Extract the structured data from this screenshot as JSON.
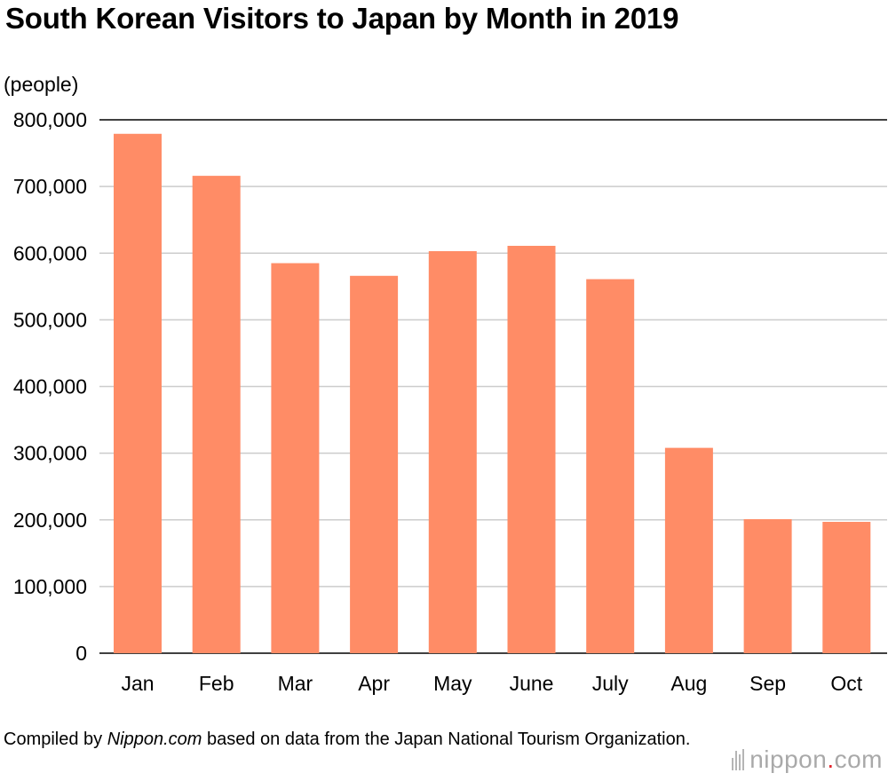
{
  "title": "South Korean Visitors to Japan by Month in 2019",
  "unit_label": "(people)",
  "source": {
    "prefix": "Compiled by ",
    "site": "Nippon.com",
    "suffix": " based on data from the Japan National Tourism Organization."
  },
  "logo": {
    "left": "nippon",
    "dot": ".",
    "right": "com"
  },
  "colors": {
    "bar": "#ff8c66",
    "grid": "#cccccc",
    "axis": "#000000"
  },
  "chart_data": {
    "type": "bar",
    "categories": [
      "Jan",
      "Feb",
      "Mar",
      "Apr",
      "May",
      "June",
      "July",
      "Aug",
      "Sep",
      "Oct"
    ],
    "values": [
      779000,
      716000,
      585000,
      566000,
      603000,
      611000,
      561000,
      308000,
      201000,
      197000
    ],
    "ylabel": "(people)",
    "ylim": [
      0,
      800000
    ],
    "yticks": [
      0,
      100000,
      200000,
      300000,
      400000,
      500000,
      600000,
      700000,
      800000
    ],
    "ytick_labels": [
      "0",
      "100,000",
      "200,000",
      "300,000",
      "400,000",
      "500,000",
      "600,000",
      "700,000",
      "800,000"
    ],
    "grid": true
  }
}
